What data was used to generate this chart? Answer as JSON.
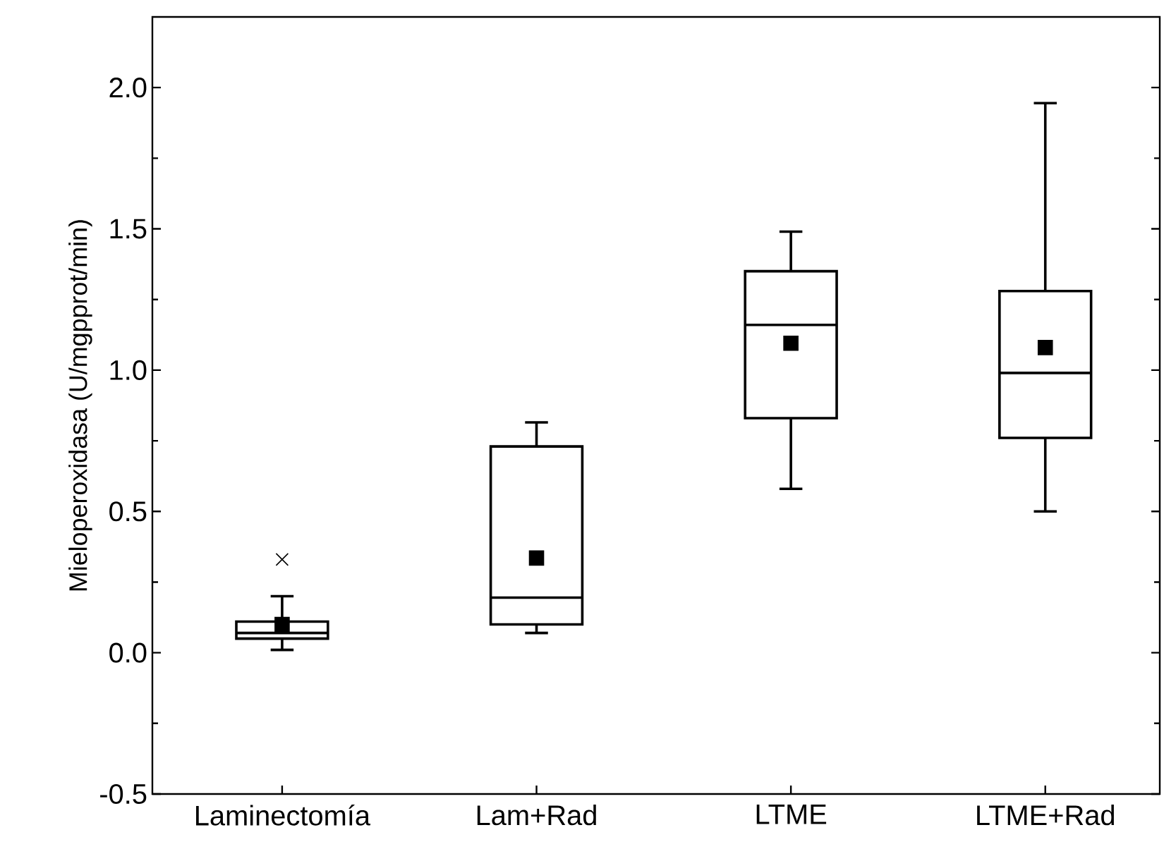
{
  "chart_data": {
    "type": "box",
    "ylabel": "Mieloperoxidasa (U/mgpprot/min)",
    "categories": [
      "Laminectomía",
      "Lam+Rad",
      "LTME",
      "LTME+Rad"
    ],
    "boxes": [
      {
        "low": 0.01,
        "q1": 0.05,
        "median": 0.07,
        "q3": 0.11,
        "high": 0.2,
        "mean": 0.1,
        "outliers": [
          0.33
        ]
      },
      {
        "low": 0.07,
        "q1": 0.1,
        "median": 0.195,
        "q3": 0.73,
        "high": 0.815,
        "mean": 0.335
      },
      {
        "low": 0.58,
        "q1": 0.83,
        "median": 1.16,
        "q3": 1.35,
        "high": 1.49,
        "mean": 1.095
      },
      {
        "low": 0.5,
        "q1": 0.76,
        "median": 0.99,
        "q3": 1.28,
        "high": 1.945,
        "mean": 1.08
      }
    ],
    "color": "#000000",
    "ylim": [
      -0.5,
      2.25
    ],
    "yticks": [
      {
        "value": -0.5,
        "label": "-0.5"
      },
      {
        "value": 0,
        "label": "0.0"
      },
      {
        "value": 0.5,
        "label": "0.5"
      },
      {
        "value": 1,
        "label": "1.0"
      },
      {
        "value": 1.5,
        "label": "1.5"
      },
      {
        "value": 2,
        "label": "2.0"
      }
    ]
  }
}
